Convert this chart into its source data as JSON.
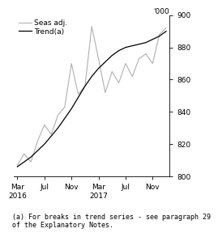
{
  "trend_x": [
    0,
    1,
    2,
    3,
    4,
    5,
    6,
    7,
    8,
    9,
    10,
    11,
    12,
    13,
    14,
    15,
    16,
    17,
    18,
    19,
    20,
    21,
    22
  ],
  "trend_y": [
    806,
    809,
    812,
    816,
    820,
    825,
    830,
    836,
    842,
    849,
    856,
    862,
    867,
    871,
    875,
    878,
    880,
    881,
    882,
    883,
    885,
    887,
    890
  ],
  "seas_x": [
    0,
    1,
    2,
    3,
    4,
    5,
    6,
    7,
    8,
    9,
    10,
    11,
    12,
    13,
    14,
    15,
    16,
    17,
    18,
    19,
    20,
    21,
    22
  ],
  "seas_y": [
    807,
    814,
    809,
    822,
    832,
    826,
    838,
    843,
    870,
    851,
    856,
    893,
    873,
    852,
    865,
    858,
    870,
    862,
    873,
    876,
    870,
    888,
    892
  ],
  "trend_color": "#000000",
  "seas_color": "#b0b0b0",
  "trend_label": "Trend(a)",
  "seas_label": "Seas adj.",
  "ylim": [
    800,
    900
  ],
  "yticks": [
    800,
    820,
    840,
    860,
    880,
    900
  ],
  "ylabel": "'000",
  "xtick_pos": [
    0,
    4,
    8,
    12,
    16,
    20
  ],
  "xtick_labels": [
    "Mar\n2016",
    "Jul",
    "Nov",
    "Mar\n2017",
    "Jul",
    "Nov"
  ],
  "xlim": [
    -0.5,
    22.5
  ],
  "footnote": "(a) For breaks in trend series - see paragraph 29\nof the Explanatory Notes.",
  "background_color": "#ffffff",
  "legend_fontsize": 6.5,
  "tick_fontsize": 6.5,
  "footnote_fontsize": 6.0,
  "trend_linewidth": 0.9,
  "seas_linewidth": 0.8
}
